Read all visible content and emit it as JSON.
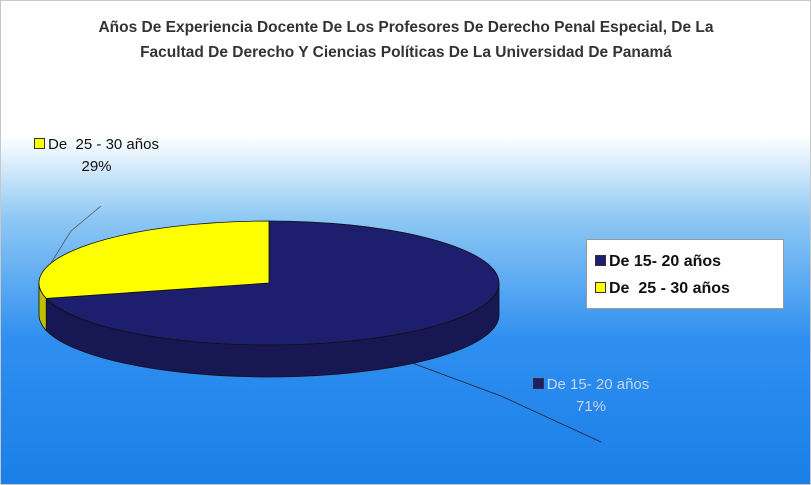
{
  "chart_data": {
    "type": "pie",
    "title": "Años De Experiencia Docente De Los Profesores De Derecho Penal Especial, De La Facultad De Derecho Y Ciencias Políticas De La Universidad De Panamá",
    "categories": [
      "De 15- 20 años",
      "De  25 - 30 años"
    ],
    "values": [
      71,
      29
    ],
    "value_labels": [
      "71%",
      "29%"
    ],
    "colors": [
      "#1e1e6e",
      "#ffff00"
    ],
    "legend": "right"
  }
}
